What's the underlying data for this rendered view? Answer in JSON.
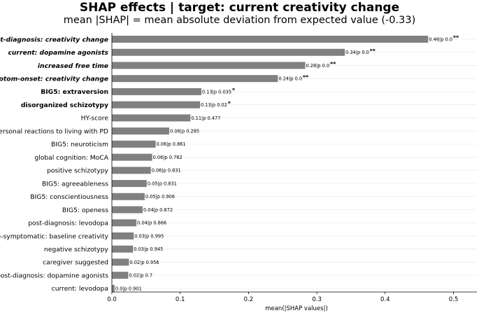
{
  "chart_data": {
    "type": "bar",
    "orientation": "horizontal",
    "title": "SHAP effects | target: current creativity change",
    "subtitle": "mean |SHAP| = mean absolute deviation from expected value (-0.33)",
    "xlabel": "mean(|SHAP values|)",
    "xlim": [
      0,
      0.55
    ],
    "xticks": [
      "0.0",
      "0.1",
      "0.2",
      "0.3",
      "0.4",
      "0.5"
    ],
    "xtick_values": [
      0,
      0.1,
      0.2,
      0.3,
      0.4,
      0.5
    ],
    "bar_color": "#808080",
    "grid": "horizontal-light",
    "bars": [
      {
        "category": "post-diagnosis: creativity change",
        "value": 0.463,
        "label": "0.46|p 0.0",
        "sig": "**",
        "style": "bold-italic"
      },
      {
        "category": "current: dopamine agonists",
        "value": 0.341,
        "label": "0.34|p 0.0",
        "sig": "**",
        "style": "bold-italic"
      },
      {
        "category": "increased free time",
        "value": 0.283,
        "label": "0.28|p 0.0",
        "sig": "**",
        "style": "bold-italic"
      },
      {
        "category": "symptom-onset: creativity change",
        "value": 0.243,
        "label": "0.24|p 0.0",
        "sig": "**",
        "style": "bold-italic"
      },
      {
        "category": "BIG5: extraversion",
        "value": 0.131,
        "label": "0.13|p 0.035",
        "sig": "*",
        "style": "bold"
      },
      {
        "category": "disorganized schizotypy",
        "value": 0.129,
        "label": "0.13|p 0.02",
        "sig": "*",
        "style": "bold"
      },
      {
        "category": "HY-score",
        "value": 0.115,
        "label": "0.11|p 0.477",
        "sig": "",
        "style": "normal"
      },
      {
        "category": "personal reactions to living with PD",
        "value": 0.084,
        "label": "0.08|p 0.285",
        "sig": "",
        "style": "normal"
      },
      {
        "category": "BIG5: neuroticism",
        "value": 0.064,
        "label": "0.06|p 0.861",
        "sig": "",
        "style": "normal"
      },
      {
        "category": "global cognition: MoCA",
        "value": 0.059,
        "label": "0.06|p 0.782",
        "sig": "",
        "style": "normal"
      },
      {
        "category": "positive schizotypy",
        "value": 0.057,
        "label": "0.06|p 0.831",
        "sig": "",
        "style": "normal"
      },
      {
        "category": "BIG5: agreeableness",
        "value": 0.051,
        "label": "0.05|p 0.831",
        "sig": "",
        "style": "normal"
      },
      {
        "category": "BIG5: conscientiousness",
        "value": 0.048,
        "label": "0.05|p 0.906",
        "sig": "",
        "style": "normal"
      },
      {
        "category": "BIG5: openess",
        "value": 0.045,
        "label": "0.04|p 0.872",
        "sig": "",
        "style": "normal"
      },
      {
        "category": "post-diagnosis: levodopa",
        "value": 0.036,
        "label": "0.04|p 0.866",
        "sig": "",
        "style": "normal"
      },
      {
        "category": "pre-symptomatic: baseline creativity",
        "value": 0.032,
        "label": "0.03|p 0.995",
        "sig": "",
        "style": "normal"
      },
      {
        "category": "negative schizotypy",
        "value": 0.031,
        "label": "0.03|p 0.945",
        "sig": "",
        "style": "normal"
      },
      {
        "category": "caregiver suggested",
        "value": 0.025,
        "label": "0.02|p 0.956",
        "sig": "",
        "style": "normal"
      },
      {
        "category": "post-diagnosis: dopamine agonists",
        "value": 0.024,
        "label": "0.02|p 0.7",
        "sig": "",
        "style": "normal"
      },
      {
        "category": "current: levodopa",
        "value": 0.004,
        "label": "0.0|p 0.901",
        "sig": "",
        "style": "normal"
      }
    ]
  }
}
